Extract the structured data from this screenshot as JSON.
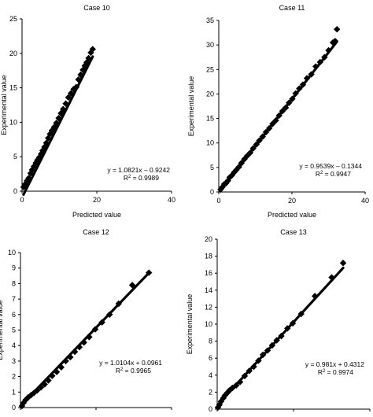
{
  "charts": [
    {
      "title": "Case 10",
      "xlabel": "Predicted value",
      "ylabel": "Experimental value",
      "xlim": [
        0,
        40
      ],
      "ylim": [
        0,
        25
      ],
      "xticks": [
        0,
        20,
        40
      ],
      "xtick_labels": [
        "0",
        "20",
        "40"
      ],
      "yticks": [
        0,
        5,
        10,
        15,
        20,
        25
      ],
      "ytick_labels": [
        "0",
        "5",
        "10",
        "15",
        "20",
        "25"
      ],
      "fit": {
        "slope": 1.0821,
        "intercept": -0.9242,
        "equation": "y = 1.0821x – 0.9242",
        "r2_label": "R",
        "r2_sup": "2",
        "r2_value": " = 0.9989"
      },
      "points": [
        [
          0.4,
          0.6
        ],
        [
          0.8,
          1.0
        ],
        [
          1.3,
          1.5
        ],
        [
          1.8,
          1.9
        ],
        [
          2.3,
          2.6
        ],
        [
          2.7,
          3.1
        ],
        [
          3.2,
          3.6
        ],
        [
          3.7,
          4.1
        ],
        [
          4.1,
          4.5
        ],
        [
          4.6,
          4.9
        ],
        [
          5.1,
          5.4
        ],
        [
          5.5,
          5.9
        ],
        [
          6.0,
          6.4
        ],
        [
          6.5,
          7.0
        ],
        [
          7.0,
          7.7
        ],
        [
          7.5,
          8.3
        ],
        [
          8.0,
          8.8
        ],
        [
          8.6,
          9.3
        ],
        [
          9.2,
          9.9
        ],
        [
          9.8,
          10.6
        ],
        [
          10.4,
          11.3
        ],
        [
          11.0,
          11.9
        ],
        [
          11.7,
          12.7
        ],
        [
          12.4,
          13.6
        ],
        [
          13.1,
          14.2
        ],
        [
          13.8,
          14.8
        ],
        [
          14.5,
          15.1
        ],
        [
          15.1,
          16.2
        ],
        [
          15.7,
          16.9
        ],
        [
          16.3,
          17.6
        ],
        [
          16.8,
          18.2
        ],
        [
          17.3,
          18.7
        ],
        [
          17.8,
          19.3
        ],
        [
          18.4,
          20.1
        ],
        [
          18.9,
          20.6
        ]
      ]
    },
    {
      "title": "Case 11",
      "xlabel": "Predicted value",
      "ylabel": "Experimental value",
      "xlim": [
        0,
        40
      ],
      "ylim": [
        0,
        35
      ],
      "xticks": [
        0,
        20,
        40
      ],
      "xtick_labels": [
        "0",
        "20",
        "40"
      ],
      "yticks": [
        0,
        5,
        10,
        15,
        20,
        25,
        30,
        35
      ],
      "ytick_labels": [
        "0",
        "5",
        "10",
        "15",
        "20",
        "25",
        "30",
        "35"
      ],
      "fit": {
        "slope": 0.9539,
        "intercept": -0.1344,
        "equation": "y = 0.9539x – 0.1344",
        "r2_label": "R",
        "r2_sup": "2",
        "r2_value": " = 0.9947"
      },
      "points": [
        [
          0.5,
          0.5
        ],
        [
          1.0,
          1.0
        ],
        [
          1.5,
          1.6
        ],
        [
          2.0,
          1.8
        ],
        [
          2.5,
          2.3
        ],
        [
          3.0,
          3.0
        ],
        [
          3.6,
          3.4
        ],
        [
          4.2,
          4.0
        ],
        [
          4.8,
          4.5
        ],
        [
          5.5,
          5.1
        ],
        [
          6.2,
          5.9
        ],
        [
          7.0,
          6.7
        ],
        [
          7.8,
          7.4
        ],
        [
          8.6,
          8.0
        ],
        [
          9.4,
          8.9
        ],
        [
          10.3,
          9.7
        ],
        [
          11.1,
          10.5
        ],
        [
          12.0,
          11.3
        ],
        [
          12.9,
          12.2
        ],
        [
          13.8,
          13.0
        ],
        [
          14.7,
          13.9
        ],
        [
          15.6,
          14.6
        ],
        [
          16.5,
          15.6
        ],
        [
          17.4,
          16.5
        ],
        [
          18.3,
          17.2
        ],
        [
          19.2,
          18.2
        ],
        [
          20.1,
          19.0
        ],
        [
          21.0,
          20.1
        ],
        [
          22.0,
          21.1
        ],
        [
          23.0,
          21.9
        ],
        [
          24.1,
          23.2
        ],
        [
          25.3,
          24.0
        ],
        [
          26.5,
          25.6
        ],
        [
          27.7,
          26.5
        ],
        [
          28.9,
          27.5
        ],
        [
          30.0,
          28.9
        ],
        [
          31.2,
          30.5
        ],
        [
          31.8,
          30.8
        ],
        [
          32.3,
          33.2
        ]
      ]
    },
    {
      "title": "Case 12",
      "xlabel": "",
      "ylabel": "Experimental value",
      "xlim": [
        0,
        10
      ],
      "ylim": [
        0,
        10
      ],
      "xticks": [
        0,
        5,
        10
      ],
      "xtick_labels": [
        "",
        "",
        ""
      ],
      "yticks": [
        0,
        1,
        2,
        3,
        4,
        5,
        6,
        7,
        8,
        9,
        10
      ],
      "ytick_labels": [
        "0",
        "1",
        "2",
        "3",
        "4",
        "5",
        "6",
        "7",
        "8",
        "9",
        "10"
      ],
      "fit": {
        "slope": 1.0104,
        "intercept": 0.0961,
        "equation": "y = 1.0104x + 0.0961",
        "r2_label": "R",
        "r2_sup": "2",
        "r2_value": " = 0.9965"
      },
      "points": [
        [
          0.1,
          0.1
        ],
        [
          0.2,
          0.3
        ],
        [
          0.35,
          0.5
        ],
        [
          0.5,
          0.65
        ],
        [
          0.7,
          0.8
        ],
        [
          0.9,
          0.95
        ],
        [
          1.1,
          1.1
        ],
        [
          1.35,
          1.3
        ],
        [
          1.6,
          1.5
        ],
        [
          1.85,
          1.75
        ],
        [
          2.1,
          2.05
        ],
        [
          2.4,
          2.3
        ],
        [
          2.7,
          2.6
        ],
        [
          3.0,
          3.0
        ],
        [
          3.3,
          3.25
        ],
        [
          3.6,
          3.6
        ],
        [
          3.9,
          3.9
        ],
        [
          4.2,
          4.2
        ],
        [
          4.55,
          4.55
        ],
        [
          4.95,
          5.05
        ],
        [
          5.4,
          5.5
        ],
        [
          5.9,
          6.0
        ],
        [
          6.5,
          6.7
        ],
        [
          7.4,
          7.9
        ],
        [
          8.5,
          8.7
        ]
      ]
    },
    {
      "title": "Case 13",
      "xlabel": "",
      "ylabel": "Experimental value",
      "xlim": [
        0,
        20
      ],
      "ylim": [
        0,
        20
      ],
      "xticks": [
        0,
        10,
        20
      ],
      "xtick_labels": [
        "",
        "",
        ""
      ],
      "yticks": [
        0,
        2,
        4,
        6,
        8,
        10,
        12,
        14,
        16,
        18,
        20
      ],
      "ytick_labels": [
        "0",
        "2",
        "4",
        "6",
        "8",
        "10",
        "12",
        "14",
        "16",
        "18",
        "20"
      ],
      "fit": {
        "slope": 0.981,
        "intercept": 0.4312,
        "equation": "y = 0.981x + 0.4312",
        "r2_label": "R",
        "r2_sup": "2",
        "r2_value": " = 0.9974"
      },
      "points": [
        [
          0.1,
          0.2
        ],
        [
          0.3,
          0.5
        ],
        [
          0.5,
          0.9
        ],
        [
          0.8,
          1.3
        ],
        [
          1.0,
          1.6
        ],
        [
          1.3,
          1.9
        ],
        [
          1.6,
          2.2
        ],
        [
          2.0,
          2.5
        ],
        [
          2.5,
          2.8
        ],
        [
          3.0,
          3.2
        ],
        [
          3.6,
          3.9
        ],
        [
          4.2,
          4.5
        ],
        [
          4.8,
          5.0
        ],
        [
          5.4,
          5.7
        ],
        [
          6.0,
          6.4
        ],
        [
          6.6,
          6.9
        ],
        [
          7.2,
          7.5
        ],
        [
          7.8,
          8.1
        ],
        [
          8.4,
          8.6
        ],
        [
          9.2,
          9.5
        ],
        [
          9.9,
          10.1
        ],
        [
          11.0,
          11.2
        ],
        [
          12.8,
          13.3
        ],
        [
          15.0,
          15.5
        ],
        [
          16.5,
          17.2
        ]
      ]
    }
  ]
}
